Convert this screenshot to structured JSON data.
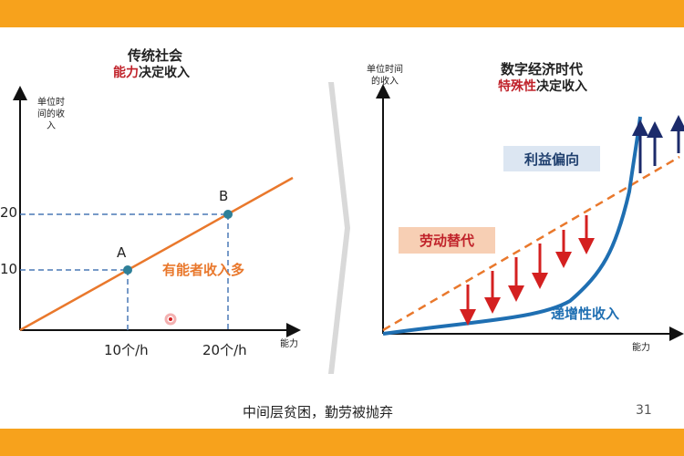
{
  "colors": {
    "accent_bar": "#f7a21c",
    "line_orange": "#e9782c",
    "point_teal": "#2e7f98",
    "curve_blue": "#1f6fb2",
    "arrow_red": "#d42020",
    "arrow_navy": "#1c2b6b",
    "guide_dash": "#4a78b5"
  },
  "left_panel": {
    "title": "传统社会",
    "subtitle_highlight": "能力",
    "subtitle_rest": "决定收入",
    "y_axis_label": "单位时间的收入",
    "x_axis_label": "能力",
    "y_tick_20": "20",
    "y_tick_10": "10",
    "x_tick_10": "10个/h",
    "x_tick_20": "20个/h",
    "point_a_label": "A",
    "point_b_label": "B",
    "line_annotation": "有能者收入多"
  },
  "right_panel": {
    "title": "数字经济时代",
    "subtitle_highlight": "特殊性",
    "subtitle_rest": "决定收入",
    "y_axis_label": "单位时间的收入",
    "x_axis_label": "能力",
    "box_interest": "利益偏向",
    "box_labor": "劳动替代",
    "curve_label": "递增性收入"
  },
  "footer": {
    "caption": "中间层贫困，勤劳被抛弃",
    "page_number": "31"
  },
  "chart_data": [
    {
      "type": "line",
      "title": "传统社会",
      "subtitle": "能力决定收入",
      "xlabel": "能力",
      "ylabel": "单位时间的收入",
      "x_ticks": [
        "10个/h",
        "20个/h"
      ],
      "y_ticks": [
        10,
        20
      ],
      "points": [
        {
          "label": "A",
          "x": 10,
          "y": 10
        },
        {
          "label": "B",
          "x": 20,
          "y": 20
        }
      ],
      "annotations": [
        "有能者收入多"
      ]
    },
    {
      "type": "line",
      "title": "数字经济时代",
      "subtitle": "特殊性决定收入",
      "xlabel": "能力",
      "ylabel": "单位时间的收入",
      "annotations": [
        "利益偏向",
        "劳动替代",
        "递增性收入"
      ]
    }
  ]
}
